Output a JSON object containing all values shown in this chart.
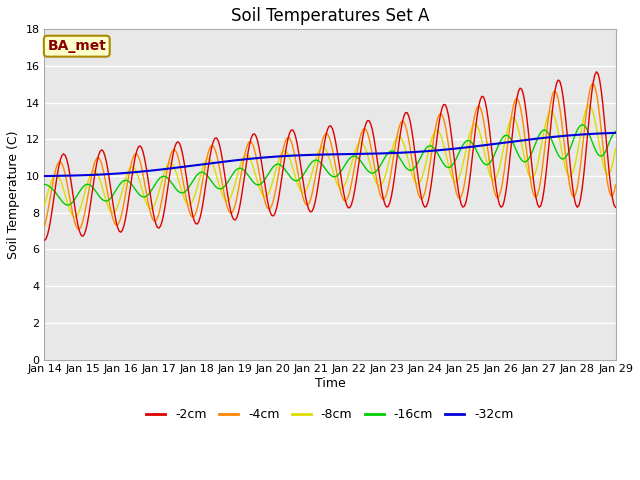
{
  "title": "Soil Temperatures Set A",
  "xlabel": "Time",
  "ylabel": "Soil Temperature (C)",
  "annotation": "BA_met",
  "ylim": [
    0,
    18
  ],
  "yticks": [
    0,
    2,
    4,
    6,
    8,
    10,
    12,
    14,
    16,
    18
  ],
  "xtick_labels": [
    "Jan 14",
    "Jan 15",
    "Jan 16",
    "Jan 17",
    "Jan 18",
    "Jan 19",
    "Jan 20",
    "Jan 21",
    "Jan 22",
    "Jan 23",
    "Jan 24",
    "Jan 25",
    "Jan 26",
    "Jan 27",
    "Jan 28",
    "Jan 29"
  ],
  "series_colors": {
    "-2cm": "#dd0000",
    "-4cm": "#ff8800",
    "-8cm": "#dddd00",
    "-16cm": "#00cc00",
    "-32cm": "#0000dd"
  },
  "plot_bg_color": "#e8e8e8",
  "grid_color": "#ffffff",
  "fig_bg_color": "#ffffff",
  "title_fontsize": 12,
  "label_fontsize": 9,
  "tick_fontsize": 8,
  "legend_fontsize": 9,
  "annotation_bg": "#ffffcc",
  "annotation_border": "#aa8800",
  "annotation_text_color": "#880000"
}
